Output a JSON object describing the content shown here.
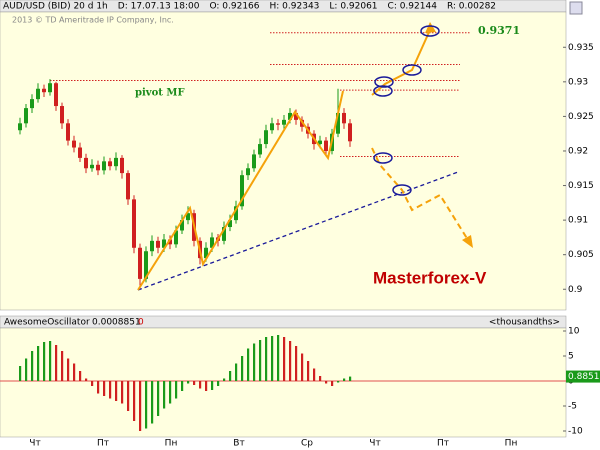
{
  "chart_data": {
    "type": "candlestick",
    "header": [
      "AUD/USD (BID) 20 d 1h",
      "D: 17.07.13 18:00",
      "O: 0.92166",
      "H: 0.92343",
      "L: 0.92061",
      "C: 0.92144",
      "R: 0.00282"
    ],
    "copyright": "2013 © TD Ameritrade IP Company, Inc.",
    "annotations": {
      "pivot": "pivot MF",
      "target": "0.9371",
      "brand": "Masterforex-V"
    },
    "ylim": [
      0.897,
      0.9401
    ],
    "yticks": [
      0.9,
      0.905,
      0.91,
      0.915,
      0.92,
      0.925,
      0.93,
      0.935
    ],
    "levels": [
      0.9371,
      0.9325,
      0.9302,
      0.9288,
      0.9192
    ],
    "ohlc": [
      [
        0.923,
        0.9248,
        0.9224,
        0.924
      ],
      [
        0.924,
        0.9268,
        0.9234,
        0.9262
      ],
      [
        0.9262,
        0.9282,
        0.9255,
        0.9275
      ],
      [
        0.9275,
        0.9298,
        0.927,
        0.929
      ],
      [
        0.929,
        0.9296,
        0.9278,
        0.9285
      ],
      [
        0.9285,
        0.9304,
        0.928,
        0.9298
      ],
      [
        0.9298,
        0.93,
        0.9258,
        0.9265
      ],
      [
        0.9265,
        0.927,
        0.9232,
        0.924
      ],
      [
        0.924,
        0.9246,
        0.9208,
        0.9215
      ],
      [
        0.9215,
        0.9222,
        0.9198,
        0.9205
      ],
      [
        0.9205,
        0.9212,
        0.9184,
        0.919
      ],
      [
        0.919,
        0.9196,
        0.9168,
        0.9175
      ],
      [
        0.9175,
        0.9188,
        0.917,
        0.918
      ],
      [
        0.918,
        0.9186,
        0.9165,
        0.9172
      ],
      [
        0.9172,
        0.9192,
        0.9166,
        0.9185
      ],
      [
        0.9185,
        0.919,
        0.9172,
        0.9178
      ],
      [
        0.9178,
        0.9198,
        0.9172,
        0.919
      ],
      [
        0.919,
        0.9194,
        0.916,
        0.9168
      ],
      [
        0.9168,
        0.9172,
        0.9122,
        0.913
      ],
      [
        0.913,
        0.9136,
        0.9052,
        0.906
      ],
      [
        0.906,
        0.9066,
        0.9,
        0.9015
      ],
      [
        0.9015,
        0.9062,
        0.901,
        0.9055
      ],
      [
        0.9055,
        0.9078,
        0.9048,
        0.907
      ],
      [
        0.907,
        0.9076,
        0.9052,
        0.906
      ],
      [
        0.906,
        0.908,
        0.9054,
        0.9072
      ],
      [
        0.9072,
        0.9078,
        0.9058,
        0.9065
      ],
      [
        0.9065,
        0.9092,
        0.906,
        0.9085
      ],
      [
        0.9085,
        0.9108,
        0.908,
        0.91
      ],
      [
        0.91,
        0.912,
        0.9094,
        0.911
      ],
      [
        0.911,
        0.9115,
        0.9062,
        0.907
      ],
      [
        0.907,
        0.9075,
        0.9036,
        0.9045
      ],
      [
        0.9045,
        0.9068,
        0.904,
        0.906
      ],
      [
        0.906,
        0.9082,
        0.9054,
        0.9075
      ],
      [
        0.9075,
        0.908,
        0.9062,
        0.907
      ],
      [
        0.907,
        0.9098,
        0.9065,
        0.909
      ],
      [
        0.909,
        0.9108,
        0.9084,
        0.91
      ],
      [
        0.91,
        0.9128,
        0.9095,
        0.912
      ],
      [
        0.912,
        0.9172,
        0.9115,
        0.9165
      ],
      [
        0.9165,
        0.9182,
        0.9158,
        0.9175
      ],
      [
        0.9175,
        0.9202,
        0.917,
        0.9195
      ],
      [
        0.9195,
        0.9218,
        0.919,
        0.921
      ],
      [
        0.921,
        0.9238,
        0.9204,
        0.923
      ],
      [
        0.923,
        0.9248,
        0.9225,
        0.924
      ],
      [
        0.924,
        0.9246,
        0.923,
        0.9238
      ],
      [
        0.9238,
        0.9252,
        0.9232,
        0.9245
      ],
      [
        0.9245,
        0.9262,
        0.924,
        0.9255
      ],
      [
        0.9255,
        0.926,
        0.9238,
        0.9245
      ],
      [
        0.9245,
        0.925,
        0.9228,
        0.9235
      ],
      [
        0.9235,
        0.924,
        0.9218,
        0.9225
      ],
      [
        0.9225,
        0.923,
        0.9202,
        0.921
      ],
      [
        0.921,
        0.9222,
        0.9204,
        0.9215
      ],
      [
        0.9215,
        0.922,
        0.9192,
        0.92
      ],
      [
        0.92,
        0.9232,
        0.9195,
        0.9225
      ],
      [
        0.9225,
        0.929,
        0.922,
        0.9255
      ],
      [
        0.9255,
        0.9262,
        0.9232,
        0.924
      ],
      [
        0.924,
        0.9246,
        0.9206,
        0.9214
      ]
    ],
    "x_days": [
      "Чт",
      "Пт",
      "Пн",
      "Вт",
      "Ср",
      "Чт",
      "Пт",
      "Пн"
    ],
    "oscillator": {
      "name": "AwesomeOscillator",
      "reading": "0.0008851",
      "flag": "0",
      "units": "<thousandths>",
      "last_label": "0.8851",
      "ylim": [
        -11.2,
        10.6
      ],
      "yticks": [
        10,
        5,
        0,
        -5,
        -10
      ],
      "values": [
        3,
        4.5,
        6,
        7,
        7.8,
        8,
        7.2,
        6,
        4.5,
        3.5,
        2,
        0.5,
        -1,
        -2.5,
        -3,
        -3.5,
        -4,
        -4.5,
        -6,
        -8,
        -10,
        -9.5,
        -8.5,
        -7,
        -5.5,
        -4.5,
        -3.5,
        -2,
        -0.5,
        -0.8,
        -1.5,
        -2,
        -1.8,
        -1,
        0.5,
        2,
        3.5,
        5,
        6.5,
        7.5,
        8.2,
        8.8,
        9,
        9.2,
        8.8,
        8,
        7,
        5.5,
        4,
        2.5,
        1,
        -0.5,
        -1,
        -0.3,
        0.5,
        0.8851
      ]
    }
  }
}
